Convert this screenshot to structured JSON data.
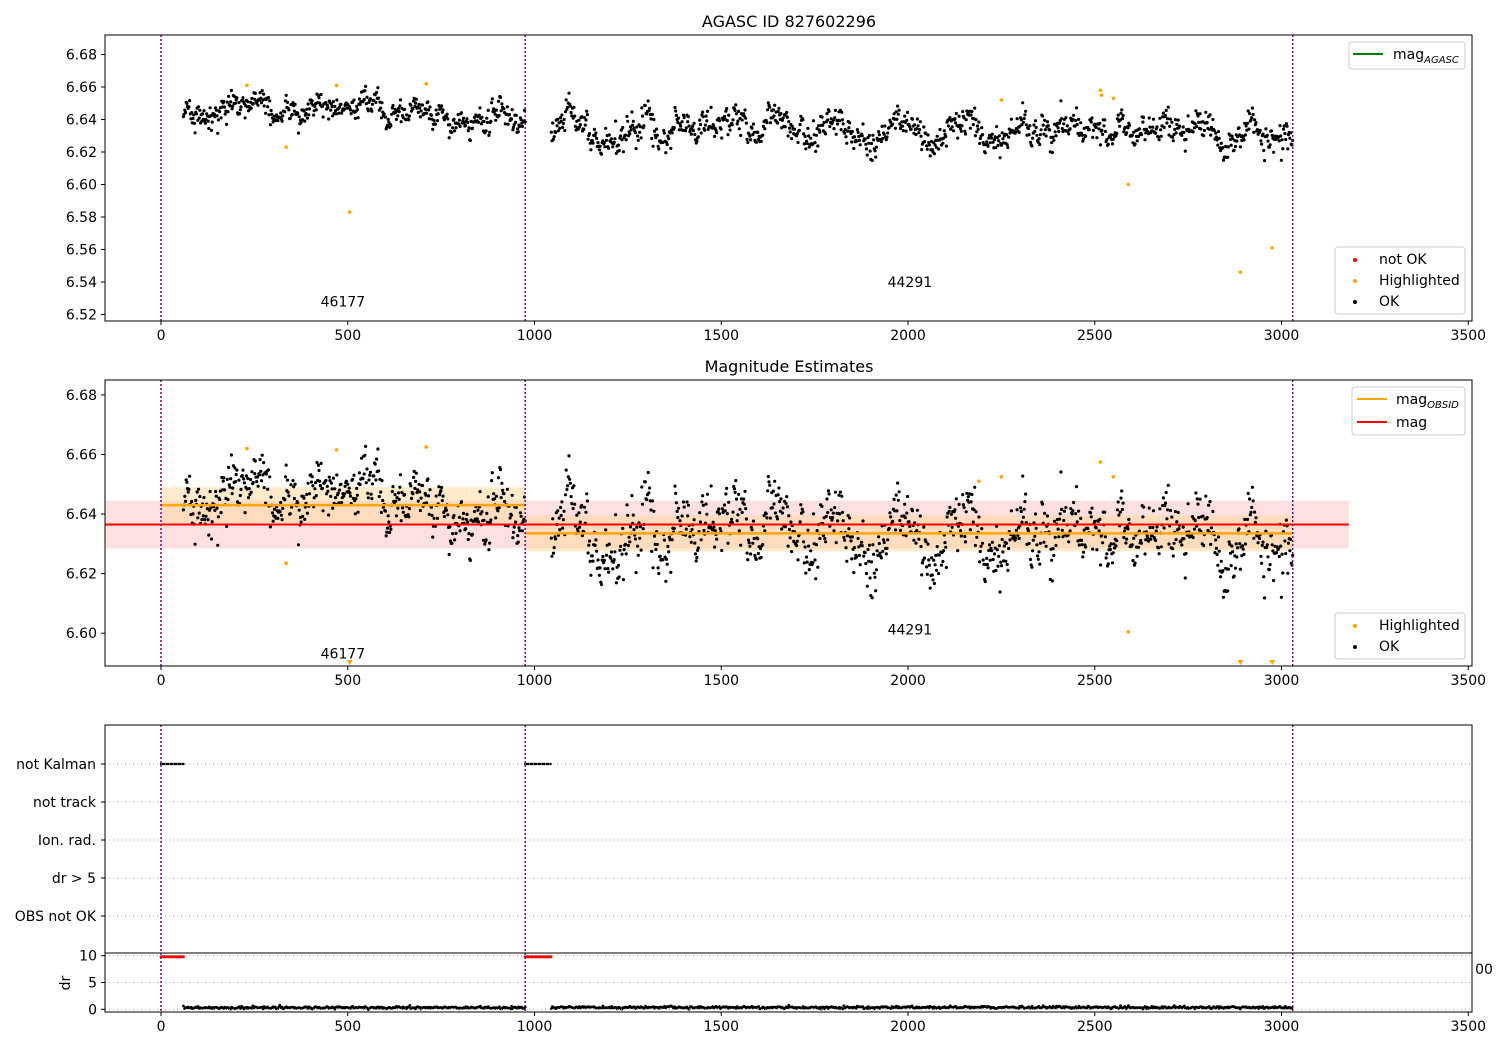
{
  "chart_data": [
    {
      "type": "scatter",
      "title": "AGASC ID 827602296",
      "xlabel": "",
      "ylabel": "",
      "xlim": [
        -150,
        3510
      ],
      "ylim": [
        6.516,
        6.692
      ],
      "xticks": [
        "0",
        "500",
        "1000",
        "1500",
        "2000",
        "2500",
        "3000",
        "3500"
      ],
      "yticks": [
        "6.52",
        "6.54",
        "6.56",
        "6.58",
        "6.60",
        "6.62",
        "6.64",
        "6.66",
        "6.68"
      ],
      "obs_boundaries": [
        0,
        975,
        3030
      ],
      "obs_labels": [
        {
          "text": "46177",
          "x": 487,
          "y": 6.525
        },
        {
          "text": "44291",
          "x": 2005,
          "y": 6.537
        }
      ],
      "legends": [
        {
          "placement": "upper-right",
          "entries": [
            {
              "label": "mag",
              "subscript": "AGASC",
              "color": "#008000",
              "kind": "line"
            }
          ]
        },
        {
          "placement": "lower-right",
          "entries": [
            {
              "label": "not OK",
              "color": "#ff0000",
              "kind": "dot"
            },
            {
              "label": "Highlighted",
              "color": "#ffa500",
              "kind": "dot"
            },
            {
              "label": "OK",
              "color": "#000000",
              "kind": "dot"
            }
          ]
        }
      ],
      "segments": [
        {
          "x0": 60,
          "x1": 975,
          "mean": 6.6445,
          "spread": 0.0055
        },
        {
          "x0": 1045,
          "x1": 3030,
          "mean": 6.634,
          "spread": 0.0065
        }
      ],
      "highlighted": [
        {
          "x": 230,
          "y": 6.661
        },
        {
          "x": 335,
          "y": 6.623
        },
        {
          "x": 470,
          "y": 6.661
        },
        {
          "x": 505,
          "y": 6.583
        },
        {
          "x": 710,
          "y": 6.662
        },
        {
          "x": 2250,
          "y": 6.652
        },
        {
          "x": 2515,
          "y": 6.658
        },
        {
          "x": 2518,
          "y": 6.655
        },
        {
          "x": 2550,
          "y": 6.653
        },
        {
          "x": 2590,
          "y": 6.6
        },
        {
          "x": 2890,
          "y": 6.546
        },
        {
          "x": 2975,
          "y": 6.561
        }
      ],
      "colors": {
        "ok": "#000000",
        "highlighted": "#ffa500",
        "not_ok": "#ff0000",
        "boundary": "#800080"
      }
    },
    {
      "type": "scatter",
      "title": "Magnitude Estimates",
      "xlabel": "",
      "ylabel": "",
      "xlim": [
        -150,
        3510
      ],
      "ylim": [
        6.589,
        6.685
      ],
      "xticks": [
        "0",
        "500",
        "1000",
        "1500",
        "2000",
        "2500",
        "3000",
        "3500"
      ],
      "yticks": [
        "6.60",
        "6.62",
        "6.64",
        "6.66",
        "6.68"
      ],
      "obs_boundaries": [
        0,
        975,
        3030
      ],
      "obs_labels": [
        {
          "text": "46177",
          "x": 487,
          "y": 6.5915
        },
        {
          "text": "44291",
          "x": 2005,
          "y": 6.5995
        }
      ],
      "mag_line": {
        "value": 6.6365,
        "band": [
          6.6285,
          6.6445
        ],
        "x0": -150,
        "x1": 3180,
        "color": "#ff0000"
      },
      "mag_obsid": [
        {
          "x0": 0,
          "x1": 975,
          "value": 6.643,
          "band": [
            6.637,
            6.649
          ]
        },
        {
          "x0": 975,
          "x1": 3030,
          "value": 6.6335,
          "band": [
            6.6275,
            6.6395
          ]
        }
      ],
      "legends": [
        {
          "placement": "upper-right",
          "entries": [
            {
              "label": "mag",
              "subscript": "OBSID",
              "color": "#ffa500",
              "kind": "line"
            },
            {
              "label": "mag",
              "subscript": "",
              "color": "#ff0000",
              "kind": "line"
            }
          ]
        },
        {
          "placement": "lower-right",
          "entries": [
            {
              "label": "Highlighted",
              "color": "#ffa500",
              "kind": "dot"
            },
            {
              "label": "OK",
              "color": "#000000",
              "kind": "dot"
            }
          ]
        }
      ],
      "highlighted": [
        {
          "x": 230,
          "y": 6.662
        },
        {
          "x": 335,
          "y": 6.6235
        },
        {
          "x": 470,
          "y": 6.6615
        },
        {
          "x": 710,
          "y": 6.6625
        },
        {
          "x": 2190,
          "y": 6.651
        },
        {
          "x": 2250,
          "y": 6.6525
        },
        {
          "x": 2515,
          "y": 6.6575
        },
        {
          "x": 2550,
          "y": 6.6525
        },
        {
          "x": 2590,
          "y": 6.6005
        }
      ],
      "offscale_markers": [
        {
          "x": 505
        },
        {
          "x": 2890
        },
        {
          "x": 2975
        }
      ]
    },
    {
      "type": "scatter",
      "title": "",
      "xlabel": "",
      "ylabel": "",
      "flag_rows": [
        "not Kalman",
        "not track",
        "Ion. rad.",
        "dr > 5",
        "OBS not OK"
      ],
      "flag_spans": [
        {
          "row": "not Kalman",
          "x0": 0,
          "x1": 60
        },
        {
          "row": "not Kalman",
          "x0": 975,
          "x1": 1045
        }
      ],
      "obs_boundaries": [
        0,
        975,
        3030
      ]
    },
    {
      "type": "scatter",
      "title": "",
      "xlabel": "",
      "ylabel": "dr",
      "xlim": [
        -150,
        3510
      ],
      "ylim": [
        -0.5,
        10.5
      ],
      "yticks": [
        "0",
        "5",
        "10"
      ],
      "xticks": [
        "0",
        "500",
        "1000",
        "1500",
        "2000",
        "2500",
        "3000",
        "3500"
      ],
      "stray_label": "00",
      "high_spans": [
        {
          "x0": 0,
          "x1": 60,
          "y": 9.8
        },
        {
          "x0": 975,
          "x1": 1045,
          "y": 9.8
        }
      ],
      "low_segments": [
        {
          "x0": 60,
          "x1": 975,
          "y": 0.3
        },
        {
          "x0": 1045,
          "x1": 3030,
          "y": 0.35
        }
      ],
      "obs_boundaries": [
        0,
        975,
        3030
      ]
    }
  ]
}
